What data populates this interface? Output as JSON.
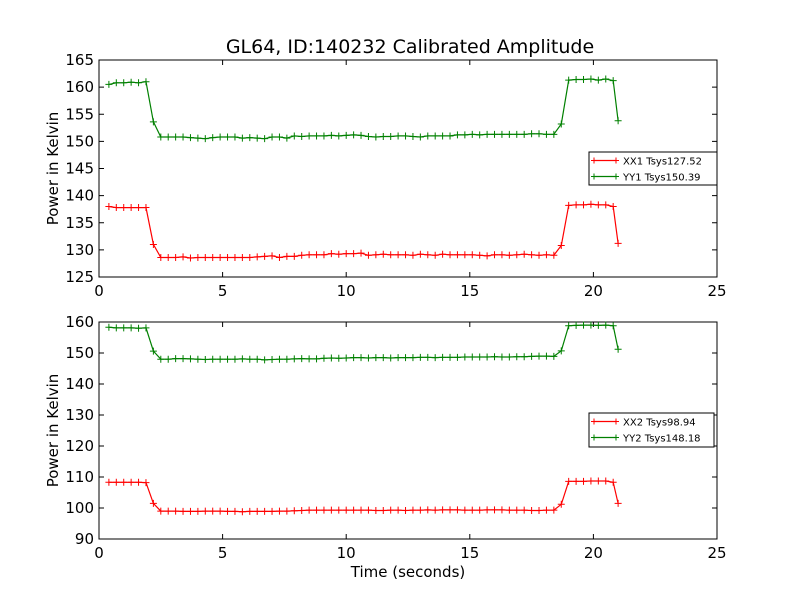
{
  "figure_title": "GL64, ID:140232 Calibrated Amplitude",
  "chart_data": [
    {
      "type": "line",
      "title": "GL64, ID:140232 Calibrated Amplitude",
      "xlabel": "",
      "ylabel": "Power in Kelvin",
      "xlim": [
        0,
        25
      ],
      "ylim": [
        125,
        165
      ],
      "xticks": [
        "0",
        "5",
        "10",
        "15",
        "20",
        "25"
      ],
      "yticks": [
        "125",
        "130",
        "135",
        "140",
        "145",
        "150",
        "155",
        "160",
        "165"
      ],
      "legend_position": "center-right",
      "series": [
        {
          "name": "XX1 Tsys127.52",
          "color": "#ff0000",
          "x": [
            0.4,
            0.7,
            1.0,
            1.3,
            1.6,
            1.9,
            2.2,
            2.5,
            2.8,
            3.1,
            3.4,
            3.7,
            4.0,
            4.3,
            4.6,
            4.9,
            5.2,
            5.5,
            5.8,
            6.1,
            6.4,
            6.7,
            7.0,
            7.3,
            7.6,
            7.9,
            8.2,
            8.5,
            8.8,
            9.1,
            9.4,
            9.7,
            10.0,
            10.3,
            10.6,
            10.9,
            11.2,
            11.5,
            11.8,
            12.1,
            12.4,
            12.7,
            13.0,
            13.3,
            13.6,
            13.9,
            14.2,
            14.5,
            14.8,
            15.1,
            15.4,
            15.7,
            16.0,
            16.3,
            16.6,
            16.9,
            17.2,
            17.5,
            17.8,
            18.1,
            18.4,
            18.7,
            19.0,
            19.3,
            19.6,
            19.9,
            20.2,
            20.5,
            20.8,
            21.0
          ],
          "y": [
            138.0,
            137.8,
            137.8,
            137.8,
            137.8,
            137.8,
            131.0,
            128.6,
            128.6,
            128.6,
            128.7,
            128.5,
            128.6,
            128.6,
            128.6,
            128.6,
            128.6,
            128.6,
            128.6,
            128.6,
            128.7,
            128.8,
            128.9,
            128.6,
            128.8,
            128.8,
            129.0,
            129.1,
            129.1,
            129.1,
            129.3,
            129.2,
            129.3,
            129.3,
            129.4,
            129.0,
            129.1,
            129.2,
            129.1,
            129.1,
            129.1,
            129.0,
            129.2,
            129.1,
            129.0,
            129.2,
            129.1,
            129.1,
            129.1,
            129.1,
            129.0,
            128.9,
            129.1,
            129.1,
            129.0,
            129.1,
            129.2,
            129.1,
            129.0,
            129.1,
            129.0,
            130.8,
            138.2,
            138.3,
            138.3,
            138.4,
            138.3,
            138.3,
            138.0,
            131.2
          ]
        },
        {
          "name": "YY1 Tsys150.39",
          "color": "#008000",
          "x": [
            0.4,
            0.7,
            1.0,
            1.3,
            1.6,
            1.9,
            2.2,
            2.5,
            2.8,
            3.1,
            3.4,
            3.7,
            4.0,
            4.3,
            4.6,
            4.9,
            5.2,
            5.5,
            5.8,
            6.1,
            6.4,
            6.7,
            7.0,
            7.3,
            7.6,
            7.9,
            8.2,
            8.5,
            8.8,
            9.1,
            9.4,
            9.7,
            10.0,
            10.3,
            10.6,
            10.9,
            11.2,
            11.5,
            11.8,
            12.1,
            12.4,
            12.7,
            13.0,
            13.3,
            13.6,
            13.9,
            14.2,
            14.5,
            14.8,
            15.1,
            15.4,
            15.7,
            16.0,
            16.3,
            16.6,
            16.9,
            17.2,
            17.5,
            17.8,
            18.1,
            18.4,
            18.7,
            19.0,
            19.3,
            19.6,
            19.9,
            20.2,
            20.5,
            20.8,
            21.0
          ],
          "y": [
            160.5,
            160.8,
            160.8,
            160.9,
            160.8,
            161.0,
            153.6,
            150.8,
            150.8,
            150.8,
            150.8,
            150.7,
            150.6,
            150.5,
            150.7,
            150.8,
            150.8,
            150.8,
            150.6,
            150.7,
            150.6,
            150.5,
            150.8,
            150.8,
            150.6,
            151.0,
            150.9,
            151.0,
            151.0,
            151.0,
            151.1,
            151.0,
            151.1,
            151.2,
            151.1,
            150.9,
            150.8,
            150.9,
            150.9,
            151.0,
            151.0,
            150.9,
            150.8,
            151.0,
            151.0,
            151.0,
            151.0,
            151.2,
            151.2,
            151.3,
            151.2,
            151.3,
            151.3,
            151.3,
            151.3,
            151.3,
            151.3,
            151.4,
            151.4,
            151.3,
            151.3,
            153.2,
            161.3,
            161.4,
            161.4,
            161.5,
            161.3,
            161.5,
            161.2,
            153.8
          ]
        }
      ]
    },
    {
      "type": "line",
      "title": "",
      "xlabel": "Time (seconds)",
      "ylabel": "Power in Kelvin",
      "xlim": [
        0,
        25
      ],
      "ylim": [
        90,
        160
      ],
      "xticks": [
        "0",
        "5",
        "10",
        "15",
        "20",
        "25"
      ],
      "yticks": [
        "90",
        "100",
        "110",
        "120",
        "130",
        "140",
        "150",
        "160"
      ],
      "legend_position": "center-right",
      "series": [
        {
          "name": "XX2 Tsys98.94",
          "color": "#ff0000",
          "x": [
            0.4,
            0.7,
            1.0,
            1.3,
            1.6,
            1.9,
            2.2,
            2.5,
            2.8,
            3.1,
            3.4,
            3.7,
            4.0,
            4.3,
            4.6,
            4.9,
            5.2,
            5.5,
            5.8,
            6.1,
            6.4,
            6.7,
            7.0,
            7.3,
            7.6,
            7.9,
            8.2,
            8.5,
            8.8,
            9.1,
            9.4,
            9.7,
            10.0,
            10.3,
            10.6,
            10.9,
            11.2,
            11.5,
            11.8,
            12.1,
            12.4,
            12.7,
            13.0,
            13.3,
            13.6,
            13.9,
            14.2,
            14.5,
            14.8,
            15.1,
            15.4,
            15.7,
            16.0,
            16.3,
            16.6,
            16.9,
            17.2,
            17.5,
            17.8,
            18.1,
            18.4,
            18.7,
            19.0,
            19.3,
            19.6,
            19.9,
            20.2,
            20.5,
            20.8,
            21.0
          ],
          "y": [
            108.3,
            108.3,
            108.3,
            108.3,
            108.3,
            108.2,
            101.5,
            99.0,
            99.0,
            99.0,
            98.9,
            98.9,
            98.9,
            99.0,
            99.0,
            99.0,
            98.9,
            98.9,
            98.8,
            98.9,
            98.9,
            98.9,
            98.9,
            99.0,
            99.0,
            99.1,
            99.2,
            99.3,
            99.3,
            99.3,
            99.3,
            99.3,
            99.3,
            99.3,
            99.3,
            99.3,
            99.2,
            99.2,
            99.3,
            99.3,
            99.2,
            99.3,
            99.3,
            99.4,
            99.3,
            99.4,
            99.4,
            99.4,
            99.3,
            99.3,
            99.3,
            99.4,
            99.4,
            99.4,
            99.3,
            99.3,
            99.3,
            99.2,
            99.2,
            99.3,
            99.3,
            101.2,
            108.6,
            108.6,
            108.6,
            108.7,
            108.7,
            108.7,
            108.3,
            101.5
          ]
        },
        {
          "name": "YY2 Tsys148.18",
          "color": "#008000",
          "x": [
            0.4,
            0.7,
            1.0,
            1.3,
            1.6,
            1.9,
            2.2,
            2.5,
            2.8,
            3.1,
            3.4,
            3.7,
            4.0,
            4.3,
            4.6,
            4.9,
            5.2,
            5.5,
            5.8,
            6.1,
            6.4,
            6.7,
            7.0,
            7.3,
            7.6,
            7.9,
            8.2,
            8.5,
            8.8,
            9.1,
            9.4,
            9.7,
            10.0,
            10.3,
            10.6,
            10.9,
            11.2,
            11.5,
            11.8,
            12.1,
            12.4,
            12.7,
            13.0,
            13.3,
            13.6,
            13.9,
            14.2,
            14.5,
            14.8,
            15.1,
            15.4,
            15.7,
            16.0,
            16.3,
            16.6,
            16.9,
            17.2,
            17.5,
            17.8,
            18.1,
            18.4,
            18.7,
            19.0,
            19.3,
            19.6,
            19.9,
            20.2,
            20.5,
            20.8,
            21.0
          ],
          "y": [
            158.3,
            158.1,
            158.1,
            158.1,
            158.0,
            158.1,
            150.6,
            148.0,
            148.0,
            148.2,
            148.2,
            148.1,
            148.0,
            147.9,
            148.0,
            148.0,
            148.0,
            148.0,
            148.1,
            148.0,
            148.0,
            147.8,
            147.9,
            148.0,
            148.0,
            148.1,
            148.2,
            148.1,
            148.1,
            148.3,
            148.4,
            148.3,
            148.4,
            148.5,
            148.5,
            148.4,
            148.5,
            148.5,
            148.4,
            148.5,
            148.5,
            148.5,
            148.6,
            148.6,
            148.5,
            148.6,
            148.6,
            148.6,
            148.7,
            148.7,
            148.7,
            148.7,
            148.8,
            148.7,
            148.7,
            148.8,
            148.8,
            148.9,
            149.0,
            149.0,
            148.9,
            150.7,
            158.8,
            158.9,
            159.0,
            159.0,
            158.9,
            159.0,
            158.8,
            151.2
          ]
        }
      ]
    }
  ]
}
